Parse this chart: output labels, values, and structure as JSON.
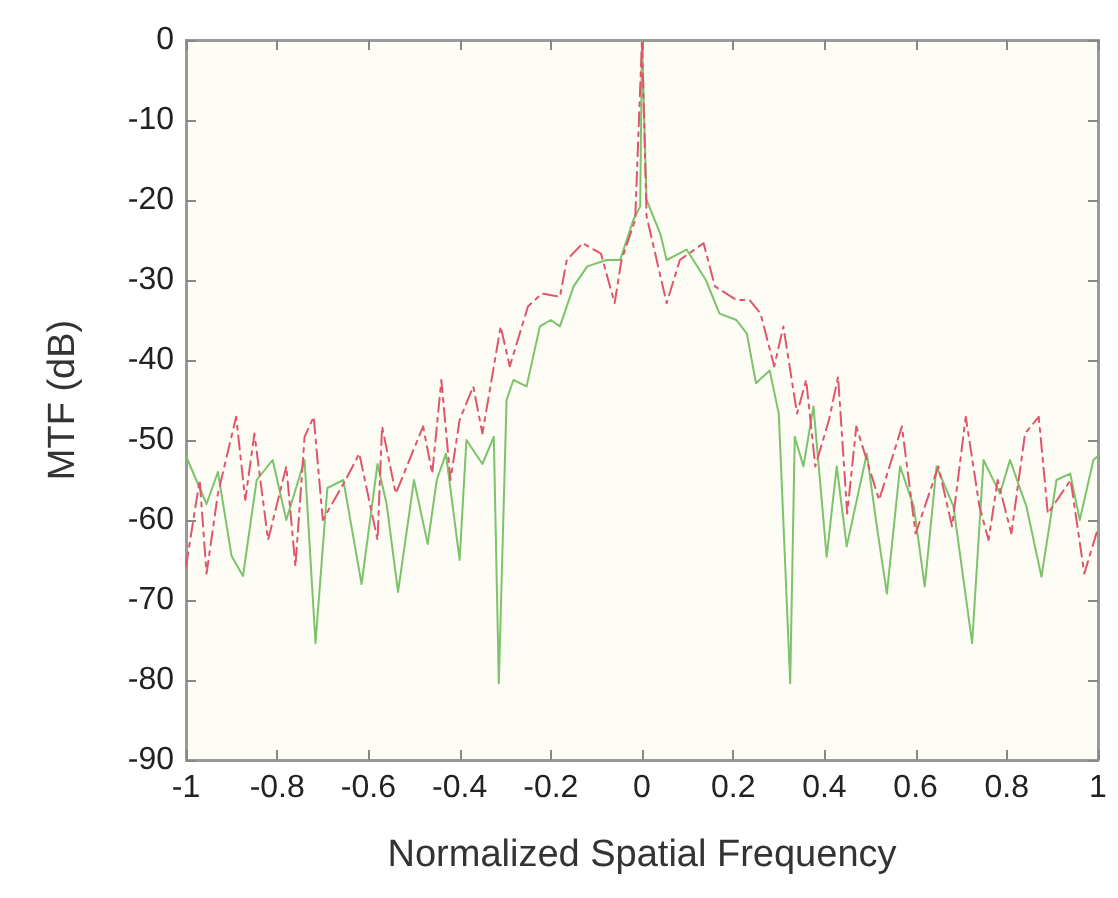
{
  "chart_data": {
    "type": "line",
    "xlabel": "Normalized Spatial Frequency",
    "ylabel": "MTF (dB)",
    "xlim": [
      -1,
      1
    ],
    "xticks": [
      -1,
      -0.8,
      -0.6,
      -0.4,
      -0.2,
      0,
      0.2,
      0.4,
      0.6,
      0.8,
      1
    ],
    "ylim": [
      -90,
      0
    ],
    "yticks": [
      -90,
      -80,
      -70,
      -60,
      -50,
      -40,
      -30,
      -20,
      -10,
      0
    ],
    "grid": false,
    "marker": "none",
    "series": [
      {
        "color": "#7cc36b",
        "line_style": "solid",
        "x": [
          -1,
          -0.955,
          -0.93,
          -0.9,
          -0.875,
          -0.845,
          -0.81,
          -0.78,
          -0.74,
          -0.716,
          -0.69,
          -0.655,
          -0.615,
          -0.58,
          -0.56,
          -0.535,
          -0.5,
          -0.47,
          -0.45,
          -0.43,
          -0.4,
          -0.385,
          -0.35,
          -0.325,
          -0.314,
          -0.297,
          -0.282,
          -0.253,
          -0.224,
          -0.2,
          -0.18,
          -0.15,
          -0.12,
          -0.078,
          -0.048,
          -0.019,
          -0.004,
          0,
          0.01,
          0.04,
          0.054,
          0.098,
          0.14,
          0.17,
          0.207,
          0.23,
          0.25,
          0.28,
          0.3,
          0.325,
          0.335,
          0.354,
          0.376,
          0.405,
          0.427,
          0.449,
          0.493,
          0.515,
          0.537,
          0.566,
          0.596,
          0.62,
          0.646,
          0.683,
          0.724,
          0.749,
          0.785,
          0.807,
          0.843,
          0.876,
          0.909,
          0.939,
          0.96,
          0.99,
          1
        ],
        "values": [
          -52,
          -58,
          -54,
          -64.5,
          -67,
          -55,
          -52.5,
          -60,
          -52.5,
          -75.4,
          -56,
          -55,
          -68,
          -53,
          -58,
          -69,
          -55,
          -63,
          -55,
          -51.7,
          -65,
          -50,
          -53,
          -49.6,
          -80.4,
          -45,
          -42.5,
          -43.3,
          -35.8,
          -35,
          -35.8,
          -30.8,
          -28.3,
          -27.5,
          -27.5,
          -22.5,
          -20.8,
          0,
          -20,
          -24.2,
          -27.5,
          -26.2,
          -30,
          -34.2,
          -35,
          -36.7,
          -42.9,
          -41.3,
          -46.7,
          -80.4,
          -49.6,
          -53.3,
          -45.8,
          -64.6,
          -53.3,
          -63.3,
          -51.7,
          -60.8,
          -69.2,
          -53.3,
          -58.3,
          -68.3,
          -53.3,
          -58.3,
          -75.4,
          -52.5,
          -56.7,
          -52.5,
          -58.3,
          -67.1,
          -55,
          -54.2,
          -60,
          -52.5,
          -52
        ]
      },
      {
        "color": "#e0556b",
        "line_style": "dashed",
        "x": [
          -1,
          -0.97,
          -0.955,
          -0.93,
          -0.89,
          -0.87,
          -0.85,
          -0.82,
          -0.78,
          -0.76,
          -0.74,
          -0.72,
          -0.7,
          -0.65,
          -0.62,
          -0.58,
          -0.57,
          -0.54,
          -0.48,
          -0.46,
          -0.44,
          -0.42,
          -0.4,
          -0.37,
          -0.35,
          -0.31,
          -0.29,
          -0.25,
          -0.22,
          -0.18,
          -0.165,
          -0.13,
          -0.09,
          -0.06,
          -0.045,
          -0.015,
          0,
          0.01,
          0.054,
          0.083,
          0.135,
          0.16,
          0.207,
          0.236,
          0.26,
          0.29,
          0.31,
          0.34,
          0.36,
          0.38,
          0.41,
          0.43,
          0.45,
          0.47,
          0.52,
          0.57,
          0.6,
          0.65,
          0.68,
          0.71,
          0.74,
          0.76,
          0.78,
          0.81,
          0.84,
          0.87,
          0.89,
          0.94,
          0.97,
          1
        ],
        "values": [
          -65.8,
          -55,
          -66.7,
          -56.7,
          -47.1,
          -57.5,
          -49.2,
          -62.5,
          -53.3,
          -65.8,
          -49.6,
          -47.1,
          -60,
          -55,
          -51.7,
          -62.5,
          -48.3,
          -56.7,
          -48.3,
          -54.2,
          -42.5,
          -55,
          -47.5,
          -43.3,
          -49.2,
          -35.8,
          -40.8,
          -33.3,
          -31.7,
          -32.1,
          -27.5,
          -25.4,
          -26.7,
          -32.9,
          -27.5,
          -22.5,
          0,
          -22,
          -32.9,
          -27.5,
          -25.4,
          -30.8,
          -32.5,
          -32.5,
          -34.2,
          -40.8,
          -35.8,
          -46.7,
          -42.5,
          -53.3,
          -47.5,
          -42.1,
          -59.2,
          -48.3,
          -57.5,
          -48.3,
          -61.7,
          -53.3,
          -60.8,
          -47.1,
          -58.3,
          -62.5,
          -55,
          -61.7,
          -49.2,
          -47.1,
          -59.2,
          -55,
          -66.7,
          -61
        ]
      }
    ]
  }
}
